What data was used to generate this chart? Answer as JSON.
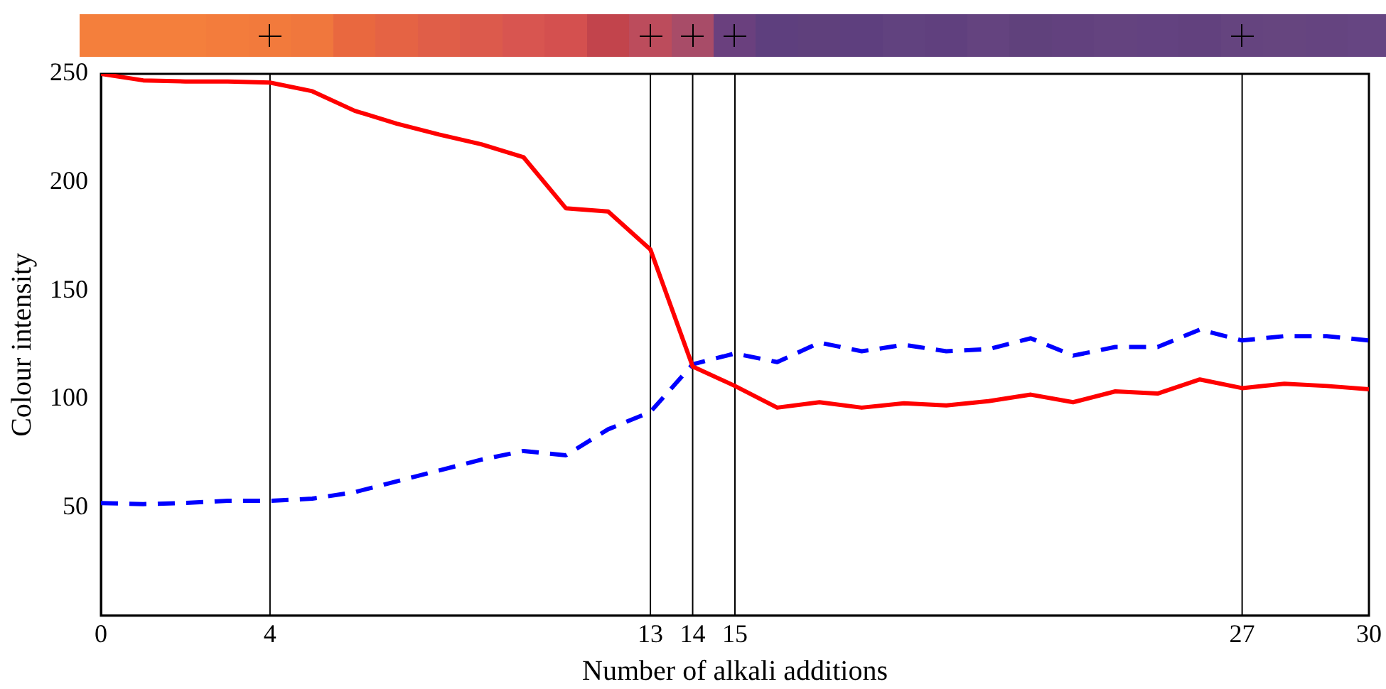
{
  "chart_data": {
    "type": "line",
    "xlabel": "Number of alkali additions",
    "ylabel": "Colour intensity",
    "x": [
      0,
      1,
      2,
      3,
      4,
      5,
      6,
      7,
      8,
      9,
      10,
      11,
      12,
      13,
      14,
      15,
      16,
      17,
      18,
      19,
      20,
      21,
      22,
      23,
      24,
      25,
      26,
      27,
      28,
      29,
      30
    ],
    "series": [
      {
        "color": "#ff0000",
        "line_style": "solid",
        "values": [
          250,
          247,
          246.5,
          246.5,
          246,
          242,
          233,
          227,
          222,
          217.5,
          211.5,
          188,
          186.5,
          169,
          115,
          106,
          96,
          98.5,
          96,
          98,
          97,
          99,
          102,
          98.5,
          103.5,
          102.5,
          109,
          105,
          107,
          106,
          104.5
        ]
      },
      {
        "color": "#0000ff",
        "line_style": "dashed",
        "values": [
          52,
          51.5,
          52,
          53,
          53,
          54,
          57,
          62,
          67,
          72,
          76,
          74,
          86,
          94,
          116,
          121,
          117,
          126,
          122,
          125,
          122,
          123,
          128,
          120,
          124,
          124,
          132,
          127,
          129,
          129,
          127
        ]
      }
    ],
    "xlim": [
      0,
      30
    ],
    "xticks": [
      0,
      4,
      13,
      14,
      15,
      27,
      30
    ],
    "ylim": [
      0,
      250
    ],
    "yticks": [
      50,
      100,
      150,
      200,
      250
    ],
    "ref_lines": [
      {
        "axis": "x",
        "value": 4,
        "color": "#000000"
      },
      {
        "axis": "x",
        "value": 13,
        "color": "#000000"
      },
      {
        "axis": "x",
        "value": 14,
        "color": "#000000"
      },
      {
        "axis": "x",
        "value": 15,
        "color": "#000000"
      },
      {
        "axis": "x",
        "value": 27,
        "color": "#000000"
      }
    ],
    "grid": false,
    "legend": false,
    "marker": "none"
  }
}
